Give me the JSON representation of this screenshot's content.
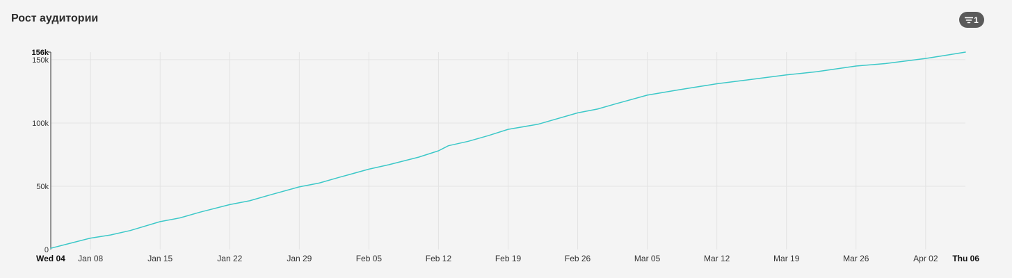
{
  "header": {
    "title": "Рост аудитории",
    "filter_count": "1"
  },
  "colors": {
    "line": "#3cc8c8",
    "grid": "#e3e3e3",
    "axis": "#555555",
    "badge": "#5a5a5a"
  },
  "icons": {
    "filter": "filter-icon"
  },
  "chart_data": {
    "type": "line",
    "title": "Рост аудитории",
    "xlabel": "",
    "ylabel": "",
    "grid": true,
    "legend": "none",
    "x_start": "Wed 04",
    "x_end": "Thu 06",
    "x_domain": [
      "Jan 04",
      "Apr 06"
    ],
    "ylim": [
      0,
      156000
    ],
    "y_ticks": [
      {
        "label": "0",
        "value": 0
      },
      {
        "label": "50k",
        "value": 50000
      },
      {
        "label": "100k",
        "value": 100000
      },
      {
        "label": "150k",
        "value": 150000
      },
      {
        "label": "156k",
        "value": 156000
      }
    ],
    "x_ticks": [
      "Wed 04",
      "Jan 08",
      "Jan 15",
      "Jan 22",
      "Jan 29",
      "Feb 05",
      "Feb 12",
      "Feb 19",
      "Feb 26",
      "Mar 05",
      "Mar 12",
      "Mar 19",
      "Mar 26",
      "Apr 02",
      "Thu 06"
    ],
    "x_tick_dates": [
      "Jan 04",
      "Jan 08",
      "Jan 15",
      "Jan 22",
      "Jan 29",
      "Feb 05",
      "Feb 12",
      "Feb 19",
      "Feb 26",
      "Mar 05",
      "Mar 12",
      "Mar 19",
      "Mar 26",
      "Apr 02",
      "Apr 06"
    ],
    "series": [
      {
        "x": [
          "Jan 04",
          "Jan 06",
          "Jan 08",
          "Jan 10",
          "Jan 12",
          "Jan 15",
          "Jan 17",
          "Jan 19",
          "Jan 22",
          "Jan 24",
          "Jan 26",
          "Jan 29",
          "Jan 31",
          "Feb 02",
          "Feb 05",
          "Feb 07",
          "Feb 10",
          "Feb 12",
          "Feb 13",
          "Feb 15",
          "Feb 17",
          "Feb 19",
          "Feb 22",
          "Feb 26",
          "Feb 28",
          "Mar 02",
          "Mar 05",
          "Mar 08",
          "Mar 12",
          "Mar 15",
          "Mar 19",
          "Mar 22",
          "Mar 26",
          "Mar 29",
          "Apr 02",
          "Apr 04",
          "Apr 06"
        ],
        "y": [
          1000,
          5000,
          9000,
          11500,
          15000,
          22000,
          25000,
          29500,
          35500,
          38500,
          43000,
          49500,
          52500,
          57000,
          63500,
          67000,
          73000,
          78000,
          82000,
          85500,
          90000,
          95000,
          99000,
          108000,
          111000,
          115500,
          122000,
          126000,
          131000,
          134000,
          138000,
          140500,
          145000,
          147000,
          151000,
          153500,
          156000
        ]
      }
    ]
  }
}
